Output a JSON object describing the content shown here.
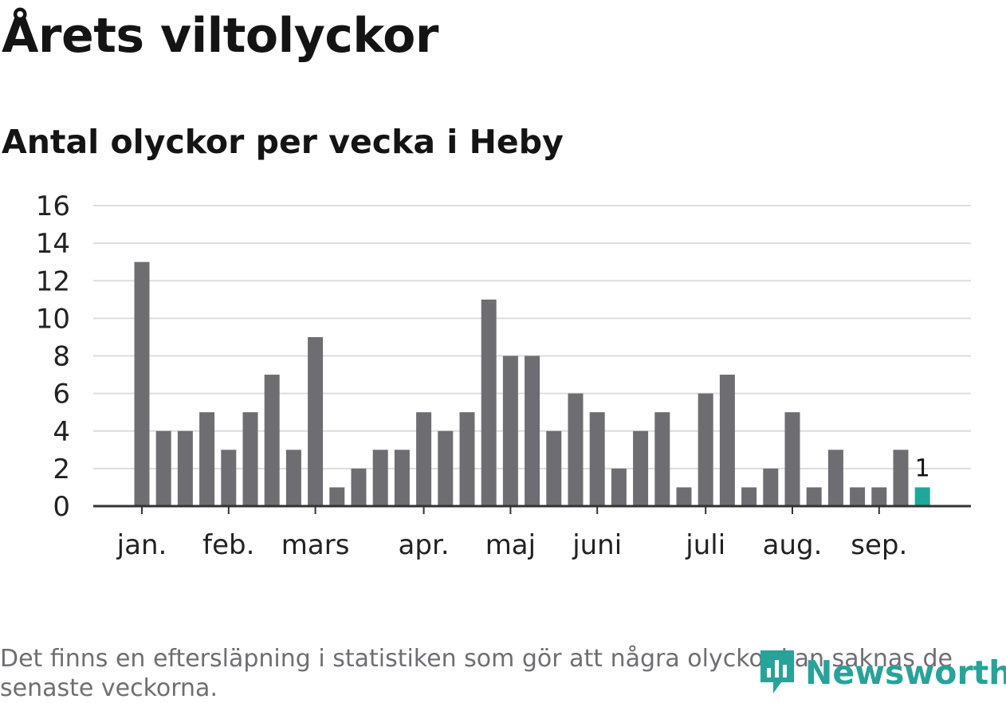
{
  "chart_data": {
    "type": "bar",
    "title": "Årets viltolyckor",
    "subtitle": "Antal olyckor per vecka i Heby",
    "xlabel": "",
    "ylabel": "",
    "ylim": [
      0,
      16
    ],
    "yticks": [
      "0",
      "2",
      "4",
      "6",
      "8",
      "10",
      "12",
      "14",
      "16"
    ],
    "grid": true,
    "values": [
      13,
      4,
      4,
      5,
      3,
      5,
      7,
      3,
      9,
      1,
      2,
      3,
      3,
      5,
      4,
      5,
      11,
      8,
      8,
      4,
      6,
      5,
      2,
      4,
      5,
      1,
      6,
      7,
      1,
      2,
      5,
      1,
      3,
      1,
      1,
      3,
      1
    ],
    "month_labels": [
      {
        "label": "jan.",
        "week": 1
      },
      {
        "label": "feb.",
        "week": 5
      },
      {
        "label": "mars",
        "week": 9
      },
      {
        "label": "apr.",
        "week": 14
      },
      {
        "label": "maj",
        "week": 18
      },
      {
        "label": "juni",
        "week": 22
      },
      {
        "label": "juli",
        "week": 27
      },
      {
        "label": "aug.",
        "week": 31
      },
      {
        "label": "sep.",
        "week": 35
      }
    ],
    "highlight_index": 36,
    "highlight_label": "1",
    "colors": {
      "bar": "#6e6d72",
      "highlight": "#1ea89b",
      "grid": "#dcdcdc",
      "axis": "#333333"
    }
  },
  "footnote": "Det finns en eftersläpning i statistiken som gör att några olyckor kan saknas de senaste veckorna.",
  "logo": {
    "text": "Newsworthy",
    "icon": "newsworthy-logo-icon"
  }
}
